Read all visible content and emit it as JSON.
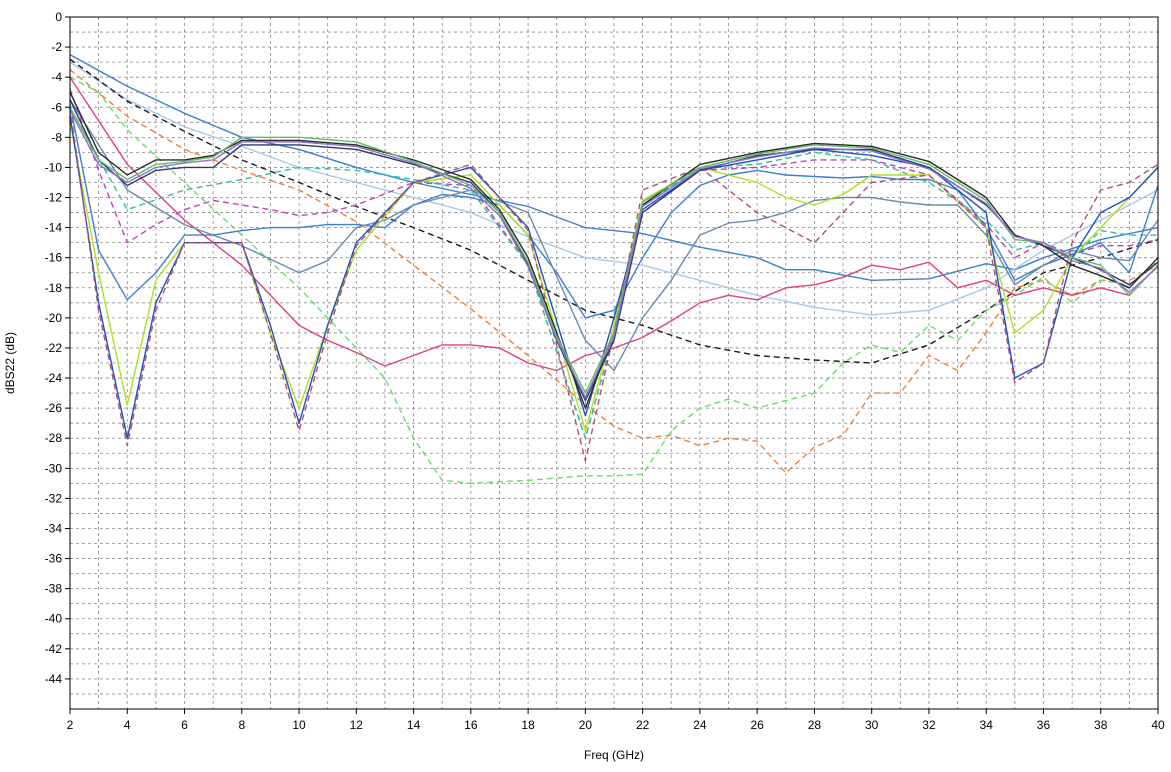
{
  "chart_data": {
    "type": "line",
    "xlabel": "Freq (GHz)",
    "ylabel": "dBS22 (dB)",
    "xlim": [
      2,
      40
    ],
    "ylim": [
      -46,
      0
    ],
    "x_ticks": [
      2,
      4,
      6,
      8,
      10,
      12,
      14,
      16,
      18,
      20,
      22,
      24,
      26,
      28,
      30,
      32,
      34,
      36,
      38,
      40
    ],
    "y_ticks": [
      0,
      -2,
      -4,
      -6,
      -8,
      -10,
      -12,
      -14,
      -16,
      -18,
      -20,
      -22,
      -24,
      -26,
      -28,
      -30,
      -32,
      -34,
      -36,
      -38,
      -40,
      -42,
      -44
    ],
    "grid": true,
    "legend": "none",
    "series": [
      {
        "color": "#3a7fd0",
        "dash": false,
        "x": [
          2,
          4,
          6,
          8,
          10,
          12,
          14,
          16,
          18,
          20,
          22,
          24,
          26,
          27,
          28,
          30,
          32,
          34,
          35,
          36,
          38,
          40
        ],
        "y": [
          -2.5,
          -4.6,
          -6.4,
          -8.0,
          -8.8,
          -10.0,
          -11.0,
          -11.8,
          -12.6,
          -14.0,
          -14.4,
          -15.3,
          -16.0,
          -16.8,
          -16.8,
          -17.5,
          -17.4,
          -16.4,
          -16.8,
          -16.0,
          -14.8,
          -14.0
        ]
      },
      {
        "color": "#a8c8e8",
        "dash": false,
        "x": [
          2,
          4,
          6,
          8,
          10,
          12,
          14,
          16,
          18,
          20,
          22,
          24,
          26,
          28,
          30,
          32,
          34,
          36,
          38,
          40
        ],
        "y": [
          -3.0,
          -5.5,
          -7.3,
          -8.6,
          -10.0,
          -11.0,
          -12.0,
          -13.0,
          -14.6,
          -16.0,
          -16.5,
          -17.5,
          -18.5,
          -19.3,
          -19.8,
          -19.5,
          -18.0,
          -15.5,
          -13.5,
          -11.5
        ]
      },
      {
        "color": "#1a1a1a",
        "dash": true,
        "x": [
          2,
          4,
          6,
          8,
          10,
          12,
          14,
          16,
          18,
          20,
          22,
          24,
          26,
          28,
          30,
          32,
          34,
          36,
          38,
          40
        ],
        "y": [
          -2.8,
          -5.6,
          -7.6,
          -9.5,
          -11.0,
          -12.6,
          -14.0,
          -15.5,
          -17.5,
          -19.5,
          -20.5,
          -21.8,
          -22.5,
          -22.8,
          -23.0,
          -21.8,
          -19.5,
          -17.0,
          -16.0,
          -14.8
        ]
      },
      {
        "color": "#f08030",
        "dash": true,
        "x": [
          2,
          4,
          6,
          8,
          10,
          12,
          14,
          16,
          18,
          20,
          21,
          22,
          23,
          24,
          25,
          26,
          27,
          28,
          29,
          30,
          31,
          32,
          33,
          34,
          35,
          36,
          37,
          38,
          39,
          40
        ],
        "y": [
          -3.5,
          -6.6,
          -8.8,
          -10.2,
          -11.5,
          -13.6,
          -16.5,
          -19.4,
          -22.5,
          -25.8,
          -27.2,
          -28.0,
          -27.8,
          -28.5,
          -28.0,
          -28.2,
          -30.3,
          -28.6,
          -27.8,
          -25.0,
          -25.0,
          -22.5,
          -23.5,
          -21.0,
          -18.0,
          -17.5,
          -18.5,
          -17.5,
          -17.5,
          -16.5
        ]
      },
      {
        "color": "#66dd66",
        "dash": true,
        "x": [
          2,
          3,
          4,
          6,
          8,
          10,
          12,
          13,
          14,
          15,
          16,
          18,
          20,
          21,
          22,
          23,
          24,
          25,
          26,
          27,
          28,
          29,
          30,
          31,
          32,
          33,
          34,
          35,
          36,
          37,
          38,
          39,
          40
        ],
        "y": [
          -4.0,
          -5.0,
          -7.5,
          -11.0,
          -14.5,
          -18.0,
          -22.0,
          -24.0,
          -28.0,
          -30.8,
          -31.0,
          -30.8,
          -30.5,
          -30.5,
          -30.4,
          -27.5,
          -26.0,
          -25.4,
          -26.0,
          -25.5,
          -25.0,
          -23.0,
          -21.8,
          -22.3,
          -20.5,
          -21.5,
          -19.5,
          -18.5,
          -17.3,
          -19.0,
          -17.5,
          -17.8,
          -16.2
        ]
      },
      {
        "color": "#e0407a",
        "dash": false,
        "x": [
          2,
          4,
          6,
          8,
          10,
          11,
          12,
          13,
          14,
          15,
          16,
          17,
          18,
          19,
          20,
          21,
          22,
          23,
          24,
          25,
          26,
          27,
          28,
          29,
          30,
          31,
          32,
          33,
          34,
          35,
          36,
          37,
          38,
          39,
          40
        ],
        "y": [
          -4.0,
          -9.8,
          -13.5,
          -16.5,
          -20.5,
          -21.5,
          -22.3,
          -23.2,
          -22.5,
          -21.8,
          -21.8,
          -22.0,
          -23.0,
          -23.5,
          -22.5,
          -22.0,
          -21.3,
          -20.2,
          -19.0,
          -18.5,
          -18.8,
          -18.0,
          -17.8,
          -17.3,
          -16.5,
          -16.8,
          -16.3,
          -18.0,
          -17.5,
          -18.5,
          -18.0,
          -18.5,
          -18.0,
          -18.5,
          -16.5
        ]
      },
      {
        "color": "#c040c0",
        "dash": true,
        "x": [
          2,
          3,
          4,
          5,
          6,
          7,
          8,
          9,
          10,
          11,
          12,
          14,
          16,
          18,
          20,
          21,
          22,
          24,
          26,
          28,
          30,
          32,
          34,
          35,
          36,
          37,
          38,
          39,
          40
        ],
        "y": [
          -4.8,
          -10.2,
          -15.0,
          -13.8,
          -12.8,
          -12.2,
          -12.5,
          -12.8,
          -13.2,
          -13.0,
          -12.5,
          -11.0,
          -11.2,
          -16.5,
          -28.0,
          -21.0,
          -13.0,
          -10.2,
          -10.0,
          -9.5,
          -9.5,
          -10.5,
          -13.8,
          -16.0,
          -15.0,
          -15.8,
          -15.2,
          -15.2,
          -14.8
        ]
      },
      {
        "color": "#30c0a0",
        "dash": true,
        "x": [
          2,
          4,
          6,
          8,
          10,
          12,
          14,
          16,
          18,
          20,
          21,
          22,
          24,
          26,
          28,
          30,
          32,
          34,
          35,
          36,
          37,
          38,
          39,
          40
        ],
        "y": [
          -6.0,
          -12.8,
          -11.5,
          -10.8,
          -10.0,
          -10.2,
          -10.8,
          -11.5,
          -16.5,
          -28.0,
          -21.0,
          -12.5,
          -10.0,
          -9.8,
          -9.0,
          -9.5,
          -11.0,
          -13.5,
          -15.5,
          -15.0,
          -16.0,
          -14.2,
          -14.5,
          -14.5
        ]
      },
      {
        "color": "#3a7fd0",
        "dash": false,
        "x": [
          2,
          3,
          4,
          5,
          6,
          7,
          8,
          9,
          10,
          11,
          12,
          13,
          14,
          15,
          16,
          17,
          18,
          19,
          20,
          21,
          22,
          23,
          24,
          25,
          26,
          27,
          28,
          29,
          30,
          31,
          32,
          33,
          34,
          35,
          36,
          37,
          38,
          39,
          40
        ],
        "y": [
          -5.8,
          -15.5,
          -18.8,
          -17.0,
          -14.5,
          -14.5,
          -14.2,
          -14.0,
          -14.0,
          -13.8,
          -13.8,
          -14.0,
          -12.5,
          -11.8,
          -12.0,
          -12.5,
          -14.5,
          -17.0,
          -20.0,
          -19.5,
          -16.0,
          -13.0,
          -11.2,
          -10.5,
          -10.2,
          -10.5,
          -10.6,
          -10.7,
          -10.6,
          -10.8,
          -10.8,
          -11.5,
          -14.0,
          -17.5,
          -16.5,
          -15.8,
          -15.0,
          -17.0,
          -11.2
        ]
      },
      {
        "color": "#6a8ab0",
        "dash": false,
        "x": [
          2,
          4,
          6,
          8,
          10,
          11,
          12,
          13,
          14,
          16,
          18,
          20,
          21,
          22,
          23,
          24,
          25,
          26,
          27,
          28,
          29,
          30,
          31,
          32,
          33,
          34,
          35,
          36,
          37,
          38,
          39,
          40
        ],
        "y": [
          -5.5,
          -11.5,
          -13.8,
          -15.2,
          -17.0,
          -16.2,
          -14.0,
          -13.5,
          -12.5,
          -11.5,
          -13.0,
          -21.5,
          -23.5,
          -20.0,
          -17.5,
          -14.5,
          -13.7,
          -13.5,
          -13.0,
          -12.2,
          -12.0,
          -12.0,
          -12.3,
          -12.5,
          -12.5,
          -14.5,
          -17.8,
          -16.5,
          -15.5,
          -16.0,
          -16.2,
          -13.5
        ]
      },
      {
        "color": "#b0e020",
        "dash": false,
        "x": [
          2,
          3,
          4,
          5,
          6,
          8,
          9,
          10,
          11,
          12,
          14,
          16,
          18,
          20,
          21,
          22,
          24,
          26,
          27,
          28,
          29,
          30,
          32,
          34,
          35,
          36,
          37,
          38,
          39,
          40
        ],
        "y": [
          -7.0,
          -17.0,
          -25.8,
          -17.5,
          -15.0,
          -15.0,
          -21.0,
          -26.0,
          -20.5,
          -15.5,
          -11.0,
          -10.5,
          -14.5,
          -27.5,
          -20.5,
          -12.2,
          -10.0,
          -11.0,
          -12.0,
          -12.5,
          -11.8,
          -10.5,
          -10.5,
          -14.0,
          -21.0,
          -19.5,
          -16.0,
          -14.0,
          -12.0,
          -10.0
        ]
      },
      {
        "color": "#2050c0",
        "dash": false,
        "x": [
          2,
          3,
          4,
          5,
          6,
          8,
          9,
          10,
          11,
          12,
          14,
          16,
          18,
          20,
          21,
          22,
          24,
          26,
          28,
          30,
          32,
          34,
          35,
          36,
          37,
          38,
          39,
          40
        ],
        "y": [
          -6.5,
          -19.0,
          -28.0,
          -19.0,
          -15.0,
          -15.0,
          -20.5,
          -27.0,
          -20.5,
          -15.0,
          -11.0,
          -10.0,
          -14.0,
          -26.5,
          -20.0,
          -12.8,
          -10.2,
          -9.5,
          -8.8,
          -9.2,
          -10.0,
          -13.0,
          -24.0,
          -23.0,
          -16.0,
          -13.0,
          -12.0,
          -10.0
        ]
      },
      {
        "color": "#b05070",
        "dash": true,
        "x": [
          2,
          3,
          4,
          5,
          6,
          8,
          9,
          10,
          11,
          12,
          14,
          16,
          18,
          20,
          21,
          22,
          24,
          26,
          28,
          30,
          32,
          34,
          35,
          36,
          37,
          38,
          39,
          40
        ],
        "y": [
          -6.0,
          -19.5,
          -28.5,
          -19.5,
          -15.0,
          -15.0,
          -21.0,
          -27.5,
          -21.0,
          -15.2,
          -11.0,
          -9.8,
          -14.2,
          -29.5,
          -21.0,
          -11.5,
          -10.0,
          -13.0,
          -15.0,
          -11.0,
          -10.5,
          -14.0,
          -24.3,
          -23.0,
          -15.0,
          -11.5,
          -11.0,
          -9.8
        ]
      },
      {
        "color": "#2a3a70",
        "dash": false,
        "x": [
          2,
          3,
          4,
          5,
          6,
          7,
          8,
          10,
          12,
          14,
          16,
          17,
          18,
          19,
          20,
          21,
          22,
          24,
          26,
          28,
          30,
          32,
          34,
          35,
          36,
          37,
          38,
          39,
          40
        ],
        "y": [
          -5.5,
          -9.5,
          -11.2,
          -10.2,
          -10.0,
          -10.0,
          -8.5,
          -8.5,
          -8.8,
          -9.8,
          -11.0,
          -13.0,
          -16.5,
          -21.5,
          -25.5,
          -21.5,
          -13.0,
          -10.2,
          -9.2,
          -8.8,
          -8.8,
          -10.0,
          -12.5,
          -14.5,
          -15.2,
          -16.0,
          -16.8,
          -17.8,
          -16.3
        ]
      },
      {
        "color": "#2a2a2a",
        "dash": false,
        "x": [
          2,
          3,
          4,
          5,
          6,
          7,
          8,
          10,
          12,
          14,
          16,
          17,
          18,
          19,
          20,
          21,
          22,
          24,
          26,
          28,
          30,
          32,
          34,
          35,
          36,
          37,
          38,
          39,
          40
        ],
        "y": [
          -5.0,
          -9.0,
          -10.5,
          -9.5,
          -9.5,
          -9.2,
          -8.2,
          -8.2,
          -8.5,
          -9.5,
          -10.8,
          -12.8,
          -16.0,
          -21.0,
          -26.0,
          -21.0,
          -12.5,
          -9.8,
          -9.0,
          -8.4,
          -8.6,
          -9.6,
          -12.0,
          -14.5,
          -15.2,
          -16.5,
          -17.2,
          -18.0,
          -16.0
        ]
      },
      {
        "color": "#60c060",
        "dash": false,
        "x": [
          2,
          3,
          4,
          5,
          6,
          7,
          8,
          10,
          12,
          14,
          16,
          17,
          18,
          19,
          20,
          21,
          22,
          24,
          26,
          28,
          30,
          32,
          34,
          35,
          36,
          37,
          38,
          39,
          40
        ],
        "y": [
          -6.0,
          -9.5,
          -10.8,
          -9.8,
          -9.6,
          -9.3,
          -8.0,
          -8.0,
          -8.3,
          -9.6,
          -11.2,
          -13.0,
          -16.3,
          -21.2,
          -25.0,
          -21.0,
          -12.3,
          -10.0,
          -9.1,
          -8.5,
          -8.7,
          -9.8,
          -12.2,
          -14.8,
          -15.0,
          -16.0,
          -16.5,
          -18.5,
          -16.5
        ]
      },
      {
        "color": "#9070d0",
        "dash": false,
        "x": [
          2,
          3,
          4,
          5,
          6,
          7,
          8,
          10,
          12,
          14,
          16,
          17,
          18,
          19,
          20,
          21,
          22,
          24,
          26,
          28,
          30,
          32,
          34,
          35,
          36,
          37,
          38,
          39,
          40
        ],
        "y": [
          -6.2,
          -9.8,
          -11.0,
          -10.0,
          -9.7,
          -9.5,
          -8.3,
          -8.3,
          -8.6,
          -9.7,
          -11.4,
          -13.2,
          -16.6,
          -21.4,
          -25.3,
          -21.2,
          -12.6,
          -10.1,
          -9.3,
          -8.7,
          -8.9,
          -10.1,
          -12.4,
          -14.6,
          -15.0,
          -16.2,
          -16.7,
          -18.3,
          -16.6
        ]
      }
    ]
  }
}
